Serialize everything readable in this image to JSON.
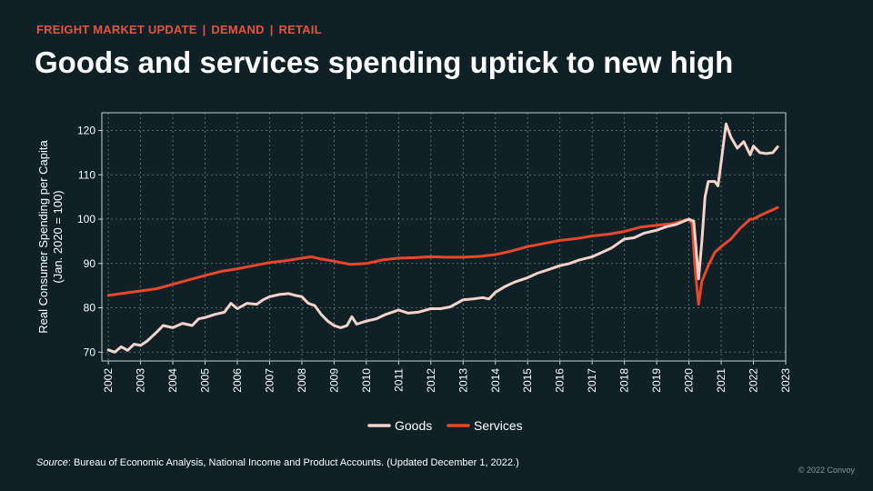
{
  "header": {
    "kicker": [
      "FREIGHT MARKET UPDATE",
      "DEMAND",
      "RETAIL"
    ],
    "kicker_separator": "|",
    "title": "Goods and services spending uptick to new high"
  },
  "footer": {
    "source_label": "Source",
    "source_text": ": Bureau of Economic Analysis, National Income and Product Accounts. (Updated December 1, 2022.)",
    "copyright": "© 2022 Convoy"
  },
  "colors": {
    "background": "#0f2027",
    "accent": "#e8533a",
    "goods": "#f5d3cb",
    "services": "#e8472c",
    "grid": "#9aa6ab",
    "frame": "#c9d1d3",
    "text": "#ffffff"
  },
  "chart_data": {
    "type": "line",
    "title": "",
    "xlabel": "",
    "ylabel": "Real Consumer Spending per Capita\n(Jan. 2020 = 100)",
    "xlim": [
      2001.8,
      2023.0
    ],
    "ylim": [
      68,
      124
    ],
    "x_ticks": [
      2002,
      2003,
      2004,
      2005,
      2006,
      2007,
      2008,
      2009,
      2010,
      2011,
      2012,
      2013,
      2014,
      2015,
      2016,
      2017,
      2018,
      2019,
      2020,
      2021,
      2022,
      2023
    ],
    "y_ticks": [
      70,
      80,
      90,
      100,
      110,
      120
    ],
    "grid": true,
    "legend": "bottom-center",
    "series": [
      {
        "name": "Goods",
        "color": "#f5d3cb",
        "points": [
          [
            2002.0,
            70.5
          ],
          [
            2002.2,
            70.0
          ],
          [
            2002.4,
            71.2
          ],
          [
            2002.6,
            70.4
          ],
          [
            2002.8,
            71.8
          ],
          [
            2003.0,
            71.5
          ],
          [
            2003.2,
            72.5
          ],
          [
            2003.5,
            74.5
          ],
          [
            2003.7,
            76.0
          ],
          [
            2004.0,
            75.5
          ],
          [
            2004.3,
            76.5
          ],
          [
            2004.6,
            76.0
          ],
          [
            2004.8,
            77.5
          ],
          [
            2005.0,
            77.8
          ],
          [
            2005.3,
            78.5
          ],
          [
            2005.6,
            79.0
          ],
          [
            2005.8,
            81.0
          ],
          [
            2006.0,
            79.8
          ],
          [
            2006.3,
            81.0
          ],
          [
            2006.6,
            80.8
          ],
          [
            2006.8,
            81.8
          ],
          [
            2007.0,
            82.5
          ],
          [
            2007.3,
            83.0
          ],
          [
            2007.6,
            83.2
          ],
          [
            2007.8,
            82.8
          ],
          [
            2008.0,
            82.5
          ],
          [
            2008.2,
            81.0
          ],
          [
            2008.4,
            80.5
          ],
          [
            2008.6,
            78.5
          ],
          [
            2008.8,
            77.0
          ],
          [
            2009.0,
            76.0
          ],
          [
            2009.2,
            75.5
          ],
          [
            2009.4,
            76.0
          ],
          [
            2009.55,
            78.0
          ],
          [
            2009.7,
            76.3
          ],
          [
            2010.0,
            77.0
          ],
          [
            2010.3,
            77.5
          ],
          [
            2010.6,
            78.5
          ],
          [
            2011.0,
            79.5
          ],
          [
            2011.3,
            78.8
          ],
          [
            2011.6,
            79.0
          ],
          [
            2012.0,
            79.8
          ],
          [
            2012.3,
            79.8
          ],
          [
            2012.6,
            80.2
          ],
          [
            2013.0,
            81.8
          ],
          [
            2013.3,
            82.0
          ],
          [
            2013.6,
            82.3
          ],
          [
            2013.8,
            82.0
          ],
          [
            2014.0,
            83.5
          ],
          [
            2014.3,
            84.8
          ],
          [
            2014.6,
            85.8
          ],
          [
            2015.0,
            86.8
          ],
          [
            2015.3,
            87.8
          ],
          [
            2015.6,
            88.5
          ],
          [
            2016.0,
            89.5
          ],
          [
            2016.3,
            90.0
          ],
          [
            2016.6,
            90.8
          ],
          [
            2017.0,
            91.5
          ],
          [
            2017.3,
            92.5
          ],
          [
            2017.6,
            93.5
          ],
          [
            2018.0,
            95.5
          ],
          [
            2018.3,
            95.8
          ],
          [
            2018.6,
            96.8
          ],
          [
            2019.0,
            97.5
          ],
          [
            2019.3,
            98.3
          ],
          [
            2019.6,
            98.8
          ],
          [
            2020.0,
            100.0
          ],
          [
            2020.15,
            99.5
          ],
          [
            2020.3,
            86.5
          ],
          [
            2020.4,
            95.0
          ],
          [
            2020.5,
            105.0
          ],
          [
            2020.6,
            108.5
          ],
          [
            2020.8,
            108.5
          ],
          [
            2020.9,
            107.5
          ],
          [
            2021.0,
            113.0
          ],
          [
            2021.15,
            121.5
          ],
          [
            2021.3,
            118.5
          ],
          [
            2021.5,
            116.0
          ],
          [
            2021.7,
            117.5
          ],
          [
            2021.9,
            114.5
          ],
          [
            2022.0,
            116.5
          ],
          [
            2022.2,
            115.0
          ],
          [
            2022.4,
            114.8
          ],
          [
            2022.6,
            115.0
          ],
          [
            2022.75,
            116.3
          ]
        ]
      },
      {
        "name": "Services",
        "color": "#e8472c",
        "points": [
          [
            2002.0,
            82.8
          ],
          [
            2002.5,
            83.3
          ],
          [
            2003.0,
            83.8
          ],
          [
            2003.5,
            84.3
          ],
          [
            2004.0,
            85.3
          ],
          [
            2004.5,
            86.3
          ],
          [
            2005.0,
            87.3
          ],
          [
            2005.5,
            88.2
          ],
          [
            2006.0,
            88.8
          ],
          [
            2006.5,
            89.5
          ],
          [
            2007.0,
            90.2
          ],
          [
            2007.5,
            90.6
          ],
          [
            2008.0,
            91.2
          ],
          [
            2008.3,
            91.5
          ],
          [
            2008.6,
            91.0
          ],
          [
            2009.0,
            90.5
          ],
          [
            2009.5,
            89.8
          ],
          [
            2010.0,
            90.0
          ],
          [
            2010.5,
            90.8
          ],
          [
            2011.0,
            91.2
          ],
          [
            2011.5,
            91.3
          ],
          [
            2012.0,
            91.5
          ],
          [
            2012.5,
            91.4
          ],
          [
            2013.0,
            91.4
          ],
          [
            2013.5,
            91.6
          ],
          [
            2014.0,
            92.0
          ],
          [
            2014.5,
            92.8
          ],
          [
            2015.0,
            93.8
          ],
          [
            2015.5,
            94.5
          ],
          [
            2016.0,
            95.2
          ],
          [
            2016.5,
            95.6
          ],
          [
            2017.0,
            96.2
          ],
          [
            2017.5,
            96.6
          ],
          [
            2018.0,
            97.2
          ],
          [
            2018.5,
            98.2
          ],
          [
            2019.0,
            98.6
          ],
          [
            2019.5,
            99.0
          ],
          [
            2020.0,
            100.0
          ],
          [
            2020.1,
            99.0
          ],
          [
            2020.2,
            88.0
          ],
          [
            2020.3,
            80.8
          ],
          [
            2020.4,
            86.0
          ],
          [
            2020.6,
            89.5
          ],
          [
            2020.8,
            92.5
          ],
          [
            2021.0,
            93.8
          ],
          [
            2021.3,
            95.5
          ],
          [
            2021.6,
            98.0
          ],
          [
            2021.9,
            100.0
          ],
          [
            2022.0,
            100.0
          ],
          [
            2022.2,
            100.8
          ],
          [
            2022.5,
            101.8
          ],
          [
            2022.75,
            102.6
          ]
        ]
      }
    ]
  }
}
